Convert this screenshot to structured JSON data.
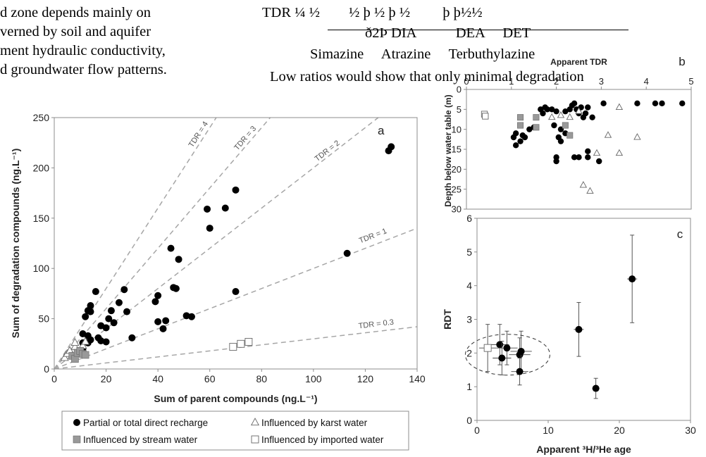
{
  "text": {
    "left_lines": [
      "d zone depends mainly on",
      "verned by soil and aquifer",
      "ment hydraulic conductivity,",
      "d groundwater flow patterns."
    ],
    "eq_top": "TDR ¼ ½        ½ þ ½ þ ½         þ þ½½",
    "eq_mid": "ð2Þ DIA           DEA     DET",
    "eq_bottom": "Simazine     Atrazine     Terbuthylazine",
    "low_ratios": "Low ratios would show that only minimal degradation"
  },
  "colors": {
    "gray_marker": "#999999",
    "dashed_line": "#a6a6a6",
    "axis": "#8c8c8c"
  },
  "chart_data": [
    {
      "id": "a",
      "type": "scatter",
      "panel_label": "a",
      "xlabel": "Sum of parent compounds (ng.L⁻¹)",
      "ylabel": "Sum of degradation compounds (ng.L⁻¹)",
      "xlim": [
        0,
        140
      ],
      "ylim": [
        0,
        250
      ],
      "x_ticks": [
        "0",
        "20",
        "40",
        "60",
        "80",
        "100",
        "120",
        "140"
      ],
      "y_ticks": [
        "0",
        "50",
        "100",
        "150",
        "200",
        "250"
      ],
      "grid": false,
      "ratio_lines": [
        {
          "label": "TDR = 4",
          "slope": 4
        },
        {
          "label": "TDR = 3",
          "slope": 3
        },
        {
          "label": "TDR = 2",
          "slope": 2
        },
        {
          "label": "TDR = 1",
          "slope": 1
        },
        {
          "label": "TDR = 0.3",
          "slope": 0.3
        }
      ],
      "series": [
        {
          "name": "Partial or total direct recharge",
          "marker": "filled-circle",
          "points": [
            [
              16,
              77
            ],
            [
              14,
              63
            ],
            [
              13,
              58
            ],
            [
              14,
              57
            ],
            [
              12,
              52
            ],
            [
              11,
              35
            ],
            [
              13,
              33
            ],
            [
              14,
              29
            ],
            [
              13,
              26
            ],
            [
              11,
              26
            ],
            [
              11,
              20
            ],
            [
              18,
              43
            ],
            [
              20,
              41
            ],
            [
              17,
              31
            ],
            [
              18,
              28
            ],
            [
              20,
              27
            ],
            [
              21,
              50
            ],
            [
              22,
              58
            ],
            [
              23,
              46
            ],
            [
              25,
              66
            ],
            [
              27,
              79
            ],
            [
              28,
              57
            ],
            [
              30,
              31
            ],
            [
              39,
              67
            ],
            [
              40,
              73
            ],
            [
              40,
              47
            ],
            [
              43,
              48
            ],
            [
              42,
              40
            ],
            [
              45,
              120
            ],
            [
              46,
              81
            ],
            [
              47,
              80
            ],
            [
              48,
              109
            ],
            [
              51,
              53
            ],
            [
              53,
              52
            ],
            [
              59,
              159
            ],
            [
              60,
              140
            ],
            [
              66,
              160
            ],
            [
              70,
              77
            ],
            [
              70,
              178
            ],
            [
              113,
              115
            ],
            [
              129,
              217
            ],
            [
              130,
              221
            ]
          ]
        },
        {
          "name": "Influenced by karst water",
          "marker": "open-triangle",
          "points": [
            [
              4,
              11
            ],
            [
              5,
              15
            ],
            [
              6,
              18
            ],
            [
              7,
              13
            ],
            [
              8,
              22
            ],
            [
              8,
              26
            ],
            [
              9,
              16
            ],
            [
              10,
              15
            ],
            [
              11,
              23
            ],
            [
              12,
              27
            ]
          ]
        },
        {
          "name": "Influenced by stream water",
          "marker": "gray-square",
          "points": [
            [
              7,
              13
            ],
            [
              8,
              10
            ],
            [
              9,
              16
            ],
            [
              10,
              18
            ],
            [
              11,
              15
            ],
            [
              12,
              14
            ]
          ]
        },
        {
          "name": "Influenced by imported water",
          "marker": "open-square",
          "points": [
            [
              69,
              22
            ],
            [
              72,
              25
            ],
            [
              75,
              27
            ]
          ]
        }
      ],
      "legend_placement": "bottom"
    },
    {
      "id": "b",
      "type": "scatter",
      "panel_label": "b",
      "xlabel": "Apparent TDR",
      "x_axis_position": "top",
      "ylabel": "Depth below water table (m)",
      "xlim": [
        0,
        5
      ],
      "ylim": [
        0,
        30
      ],
      "y_inverted": true,
      "x_ticks": [
        "0",
        "1",
        "2",
        "3",
        "4",
        "5"
      ],
      "y_ticks": [
        "0",
        "5",
        "10",
        "15",
        "20",
        "25",
        "30"
      ],
      "series": [
        {
          "name": "Partial or total direct recharge",
          "marker": "filled-circle",
          "points": [
            [
              1.1,
              11
            ],
            [
              1.05,
              12
            ],
            [
              1.1,
              14
            ],
            [
              1.2,
              13
            ],
            [
              1.25,
              11.5
            ],
            [
              1.3,
              12
            ],
            [
              1.4,
              10
            ],
            [
              1.5,
              9.5
            ],
            [
              1.65,
              5
            ],
            [
              1.7,
              6
            ],
            [
              1.75,
              4.5
            ],
            [
              1.8,
              5
            ],
            [
              1.9,
              5
            ],
            [
              1.95,
              9
            ],
            [
              2.0,
              5.5
            ],
            [
              2.05,
              12
            ],
            [
              2.1,
              10
            ],
            [
              2.1,
              13
            ],
            [
              2.2,
              11
            ],
            [
              2.2,
              5.5
            ],
            [
              2.3,
              5
            ],
            [
              2.35,
              4
            ],
            [
              2.4,
              3.5
            ],
            [
              2.45,
              5
            ],
            [
              2.5,
              6
            ],
            [
              2.55,
              4.5
            ],
            [
              2.6,
              7
            ],
            [
              2.65,
              6
            ],
            [
              2.7,
              4.5
            ],
            [
              2.8,
              7
            ],
            [
              2.0,
              17
            ],
            [
              2.0,
              18
            ],
            [
              2.4,
              17
            ],
            [
              2.5,
              17
            ],
            [
              2.7,
              15.5
            ],
            [
              2.7,
              17
            ],
            [
              2.95,
              18
            ],
            [
              3.05,
              3.5
            ],
            [
              3.8,
              3.5
            ],
            [
              4.2,
              3.5
            ],
            [
              4.35,
              3.5
            ],
            [
              4.8,
              3.5
            ]
          ]
        },
        {
          "name": "Influenced by karst water",
          "marker": "open-triangle",
          "points": [
            [
              1.9,
              7
            ],
            [
              2.1,
              6.5
            ],
            [
              2.3,
              7
            ],
            [
              2.5,
              5.5
            ],
            [
              2.9,
              16
            ],
            [
              3.15,
              11.5
            ],
            [
              3.4,
              4.5
            ],
            [
              3.4,
              16
            ],
            [
              3.8,
              12
            ],
            [
              2.6,
              24
            ],
            [
              2.75,
              25.5
            ]
          ]
        },
        {
          "name": "Influenced by stream water",
          "marker": "gray-square",
          "points": [
            [
              1.2,
              7
            ],
            [
              1.2,
              9
            ],
            [
              1.55,
              7
            ],
            [
              1.55,
              9.5
            ],
            [
              2.2,
              9
            ],
            [
              2.3,
              11.5
            ]
          ]
        },
        {
          "name": "Influenced by imported water",
          "marker": "open-square",
          "points": [
            [
              0.4,
              6.2
            ],
            [
              0.42,
              6.7
            ]
          ]
        }
      ]
    },
    {
      "id": "c",
      "type": "scatter",
      "panel_label": "c",
      "xlabel": "Apparent ³H/³He age",
      "ylabel": "RDT",
      "xlim": [
        0,
        30
      ],
      "ylim": [
        0,
        6
      ],
      "x_ticks": [
        "0",
        "10",
        "20",
        "30"
      ],
      "y_ticks": [
        "0",
        "1",
        "2",
        "3",
        "4",
        "5",
        "6"
      ],
      "series": [
        {
          "name": "Partial or total direct recharge",
          "marker": "filled-circle",
          "points": [
            {
              "x": 3.2,
              "y": 2.25,
              "xerr": 1.3,
              "yerr": 0.6
            },
            {
              "x": 3.5,
              "y": 1.85,
              "xerr": 1.3,
              "yerr": 0.5
            },
            {
              "x": 4.2,
              "y": 2.15,
              "xerr": 1.5,
              "yerr": 0.5
            },
            {
              "x": 6.0,
              "y": 1.95,
              "xerr": 1.5,
              "yerr": 0.5
            },
            {
              "x": 6.2,
              "y": 2.05,
              "xerr": 1.5,
              "yerr": 0.6
            },
            {
              "x": 6.0,
              "y": 1.45,
              "xerr": 1.2,
              "yerr": 0.4
            },
            {
              "x": 14.3,
              "y": 2.7,
              "xerr": 0.7,
              "yerr": 0.8
            },
            {
              "x": 16.7,
              "y": 0.95,
              "xerr": 0.5,
              "yerr": 0.3
            },
            {
              "x": 21.8,
              "y": 4.2,
              "xerr": 0.7,
              "yerr": 1.3
            }
          ]
        },
        {
          "name": "Influenced by imported water",
          "marker": "open-square",
          "points": [
            {
              "x": 1.5,
              "y": 2.15,
              "xerr": 1.2,
              "yerr": 0.7
            }
          ]
        }
      ],
      "annotation": "dashed ellipse around cluster of young ages"
    }
  ]
}
